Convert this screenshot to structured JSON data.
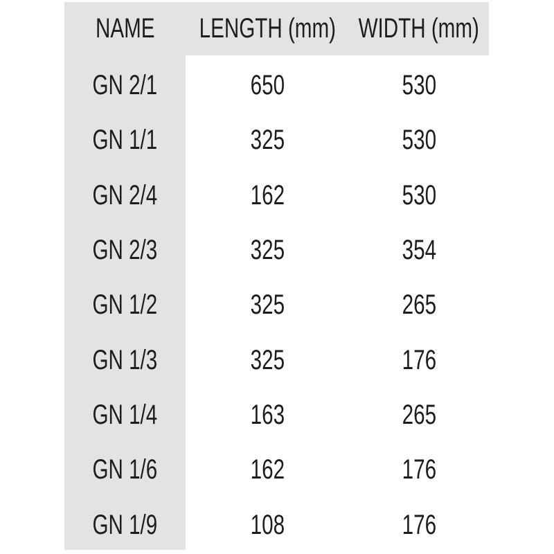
{
  "page": {
    "background_color": "#ffffff",
    "band_color": "#e4e3e1",
    "text_color": "#1d1d1b"
  },
  "table": {
    "columns": [
      "NAME",
      "LENGTH (mm)",
      "WIDTH (mm)"
    ],
    "rows": [
      {
        "name": "GN 2/1",
        "length": "650",
        "width": "530"
      },
      {
        "name": "GN 1/1",
        "length": "325",
        "width": "530"
      },
      {
        "name": "GN 2/4",
        "length": "162",
        "width": "530"
      },
      {
        "name": "GN 2/3",
        "length": "325",
        "width": "354"
      },
      {
        "name": "GN 1/2",
        "length": "325",
        "width": "265"
      },
      {
        "name": "GN 1/3",
        "length": "325",
        "width": "176"
      },
      {
        "name": "GN 1/4",
        "length": "163",
        "width": "265"
      },
      {
        "name": "GN 1/6",
        "length": "162",
        "width": "176"
      },
      {
        "name": "GN 1/9",
        "length": "108",
        "width": "176"
      }
    ]
  }
}
